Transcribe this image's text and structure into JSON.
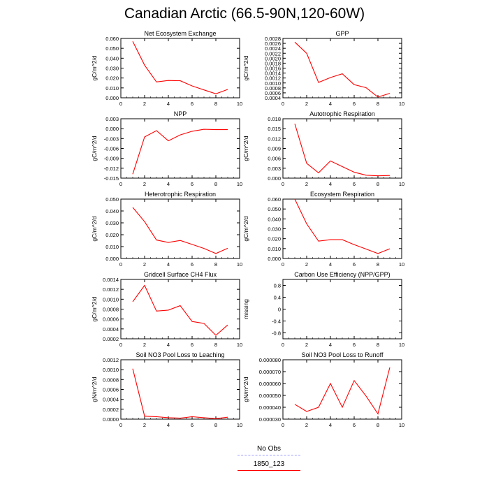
{
  "title": "Canadian Arctic (66.5-90N,120-60W)",
  "legend": [
    {
      "label": "No Obs",
      "color": "#9999ff",
      "dashed": true
    },
    {
      "label": "1850_123",
      "color": "#ff0000",
      "dashed": false
    }
  ],
  "chart_data": [
    {
      "type": "line",
      "title": "Net Ecosystem Exchange",
      "ylabel": "gC/m^2/d",
      "xlim": [
        0,
        10
      ],
      "xticks": [
        "0",
        "2",
        "4",
        "6",
        "8",
        "10"
      ],
      "ylim": [
        0.0,
        0.06
      ],
      "yticks": [
        "0.000",
        "0.010",
        "0.020",
        "0.030",
        "0.040",
        "0.050",
        "0.060"
      ],
      "series": [
        {
          "color": "#ff0000",
          "x": [
            1,
            2,
            3,
            4,
            5,
            6,
            7,
            8,
            9
          ],
          "values": [
            0.057,
            0.033,
            0.016,
            0.0175,
            0.0172,
            0.012,
            0.008,
            0.004,
            0.0085
          ]
        }
      ]
    },
    {
      "type": "line",
      "title": "GPP",
      "ylabel": "gC/m^2/d",
      "xlim": [
        0,
        10
      ],
      "xticks": [
        "0",
        "2",
        "4",
        "6",
        "8",
        "10"
      ],
      "ylim": [
        0.0004,
        0.0028
      ],
      "yticks": [
        "0.0004",
        "0.0006",
        "0.0008",
        "0.0010",
        "0.0012",
        "0.0014",
        "0.0016",
        "0.0018",
        "0.0020",
        "0.0022",
        "0.0024",
        "0.0026",
        "0.0028"
      ],
      "series": [
        {
          "color": "#ff0000",
          "x": [
            1,
            2,
            3,
            4,
            5,
            6,
            7,
            8,
            9
          ],
          "values": [
            0.00265,
            0.0022,
            0.00102,
            0.00122,
            0.00137,
            0.00093,
            0.00081,
            0.00043,
            0.00058
          ]
        }
      ]
    },
    {
      "type": "line",
      "title": "NPP",
      "ylabel": "gC/m^2/d",
      "xlim": [
        0,
        10
      ],
      "xticks": [
        "0",
        "2",
        "4",
        "6",
        "8",
        "10"
      ],
      "ylim": [
        -0.015,
        0.003
      ],
      "yticks": [
        "-0.015",
        "-0.012",
        "-0.009",
        "-0.006",
        "-0.003",
        "0.000",
        "0.003"
      ],
      "series": [
        {
          "color": "#ff0000",
          "x": [
            1,
            2,
            3,
            4,
            5,
            6,
            7,
            8,
            9
          ],
          "values": [
            -0.0138,
            -0.0025,
            -0.0006,
            -0.0037,
            -0.0019,
            -0.0008,
            -0.0002,
            -0.0003,
            -0.0003
          ]
        }
      ]
    },
    {
      "type": "line",
      "title": "Autotrophic Respiration",
      "ylabel": "gC/m^2/d",
      "xlim": [
        0,
        10
      ],
      "xticks": [
        "0",
        "2",
        "4",
        "6",
        "8",
        "10"
      ],
      "ylim": [
        0.0,
        0.018
      ],
      "yticks": [
        "0.000",
        "0.003",
        "0.006",
        "0.009",
        "0.012",
        "0.015",
        "0.018"
      ],
      "series": [
        {
          "color": "#ff0000",
          "x": [
            1,
            2,
            3,
            4,
            5,
            6,
            7,
            8,
            9
          ],
          "values": [
            0.0165,
            0.0045,
            0.0016,
            0.0052,
            0.0035,
            0.0018,
            0.0009,
            0.0007,
            0.0008
          ]
        }
      ]
    },
    {
      "type": "line",
      "title": "Heterotrophic Respiration",
      "ylabel": "gC/m^2/d",
      "xlim": [
        0,
        10
      ],
      "xticks": [
        "0",
        "2",
        "4",
        "6",
        "8",
        "10"
      ],
      "ylim": [
        0.0,
        0.05
      ],
      "yticks": [
        "0.000",
        "0.010",
        "0.020",
        "0.030",
        "0.040",
        "0.050"
      ],
      "series": [
        {
          "color": "#ff0000",
          "x": [
            1,
            2,
            3,
            4,
            5,
            6,
            7,
            8,
            9
          ],
          "values": [
            0.043,
            0.031,
            0.0155,
            0.0135,
            0.0152,
            0.0118,
            0.0085,
            0.0042,
            0.0086
          ]
        }
      ]
    },
    {
      "type": "line",
      "title": "Ecosystem Respiration",
      "ylabel": "gC/m^2/d",
      "xlim": [
        0,
        10
      ],
      "xticks": [
        "0",
        "2",
        "4",
        "6",
        "8",
        "10"
      ],
      "ylim": [
        0.0,
        0.06
      ],
      "yticks": [
        "0.000",
        "0.010",
        "0.020",
        "0.030",
        "0.040",
        "0.050",
        "0.060"
      ],
      "series": [
        {
          "color": "#ff0000",
          "x": [
            1,
            2,
            3,
            4,
            5,
            6,
            7,
            8,
            9
          ],
          "values": [
            0.06,
            0.035,
            0.0175,
            0.019,
            0.019,
            0.014,
            0.0095,
            0.005,
            0.0098
          ]
        }
      ]
    },
    {
      "type": "line",
      "title": "Gridcell Surface CH4 Flux",
      "ylabel": "gC/m^2/d",
      "xlim": [
        0,
        10
      ],
      "xticks": [
        "0",
        "2",
        "4",
        "6",
        "8",
        "10"
      ],
      "ylim": [
        0.0002,
        0.0014
      ],
      "yticks": [
        "0.0002",
        "0.0004",
        "0.0006",
        "0.0008",
        "0.0010",
        "0.0012",
        "0.0014"
      ],
      "series": [
        {
          "color": "#ff0000",
          "x": [
            1,
            2,
            3,
            4,
            5,
            6,
            7,
            8,
            9
          ],
          "values": [
            0.00095,
            0.00128,
            0.00076,
            0.00078,
            0.00087,
            0.00055,
            0.00051,
            0.00027,
            0.00048
          ]
        }
      ]
    },
    {
      "type": "line",
      "title": "Carbon Use Efficiency (NPP/GPP)",
      "ylabel": "missing",
      "xlim": [
        0,
        10
      ],
      "xticks": [
        "0",
        "2",
        "4",
        "6",
        "8",
        "10"
      ],
      "ylim": [
        -1.0,
        1.0
      ],
      "yticks": [
        "-0.8",
        "-0.4",
        "0",
        "0.4",
        "0.8"
      ],
      "series": []
    },
    {
      "type": "line",
      "title": "Soil NO3 Pool Loss to Leaching",
      "ylabel": "gN/m^2/d",
      "xlim": [
        0,
        10
      ],
      "xticks": [
        "0",
        "2",
        "4",
        "6",
        "8",
        "10"
      ],
      "ylim": [
        0.0,
        0.0012
      ],
      "yticks": [
        "0.0000",
        "0.0002",
        "0.0004",
        "0.0006",
        "0.0008",
        "0.0010",
        "0.0012"
      ],
      "series": [
        {
          "color": "#ff0000",
          "x": [
            1,
            2,
            3,
            4,
            5,
            6,
            7,
            8,
            9
          ],
          "values": [
            0.00102,
            6e-05,
            5e-05,
            3e-05,
            2e-05,
            5e-05,
            3e-05,
            1e-05,
            4e-05
          ]
        }
      ]
    },
    {
      "type": "line",
      "title": "Soil NO3 Pool Loss to Runoff",
      "ylabel": "gN/m^2/d",
      "xlim": [
        0,
        10
      ],
      "xticks": [
        "0",
        "2",
        "4",
        "6",
        "8",
        "10"
      ],
      "ylim": [
        3e-05,
        8e-05
      ],
      "yticks": [
        "0.000030",
        "0.000040",
        "0.000050",
        "0.000060",
        "0.000070",
        "0.000080"
      ],
      "series": [
        {
          "color": "#ff0000",
          "x": [
            1,
            2,
            3,
            4,
            5,
            6,
            7,
            8,
            9
          ],
          "values": [
            4.25e-05,
            3.65e-05,
            4e-05,
            6e-05,
            4e-05,
            6.25e-05,
            4.95e-05,
            3.45e-05,
            7.35e-05
          ]
        }
      ]
    }
  ]
}
